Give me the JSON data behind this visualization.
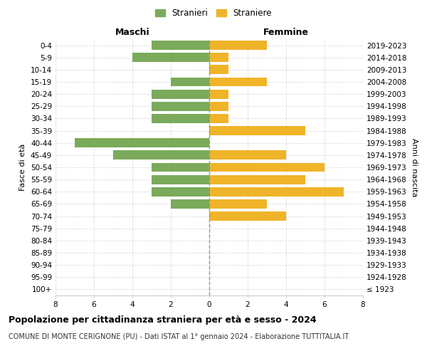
{
  "age_groups": [
    "100+",
    "95-99",
    "90-94",
    "85-89",
    "80-84",
    "75-79",
    "70-74",
    "65-69",
    "60-64",
    "55-59",
    "50-54",
    "45-49",
    "40-44",
    "35-39",
    "30-34",
    "25-29",
    "20-24",
    "15-19",
    "10-14",
    "5-9",
    "0-4"
  ],
  "birth_years": [
    "≤ 1923",
    "1924-1928",
    "1929-1933",
    "1934-1938",
    "1939-1943",
    "1944-1948",
    "1949-1953",
    "1954-1958",
    "1959-1963",
    "1964-1968",
    "1969-1973",
    "1974-1978",
    "1979-1983",
    "1984-1988",
    "1989-1993",
    "1994-1998",
    "1999-2003",
    "2004-2008",
    "2009-2013",
    "2014-2018",
    "2019-2023"
  ],
  "maschi": [
    0,
    0,
    0,
    0,
    0,
    0,
    0,
    2,
    3,
    3,
    3,
    5,
    7,
    0,
    3,
    3,
    3,
    2,
    0,
    4,
    3
  ],
  "femmine": [
    0,
    0,
    0,
    0,
    0,
    0,
    4,
    3,
    7,
    5,
    6,
    4,
    0,
    5,
    1,
    1,
    1,
    3,
    1,
    1,
    3
  ],
  "maschi_color": "#7aaa5a",
  "femmine_color": "#f0b429",
  "grid_color": "#cccccc",
  "center_line_color": "#aaaaaa",
  "title": "Popolazione per cittadinanza straniera per età e sesso - 2024",
  "subtitle": "COMUNE DI MONTE CERIGNONE (PU) - Dati ISTAT al 1° gennaio 2024 - Elaborazione TUTTITALIA.IT",
  "label_maschi": "Maschi",
  "label_femmine": "Femmine",
  "ylabel_left": "Fasce di età",
  "ylabel_right": "Anni di nascita",
  "legend_maschi": "Stranieri",
  "legend_femmine": "Straniere",
  "xlim": 8,
  "bar_height": 0.75,
  "tick_fontsize": 7.5,
  "label_fontsize": 9,
  "title_fontsize": 9,
  "subtitle_fontsize": 7
}
